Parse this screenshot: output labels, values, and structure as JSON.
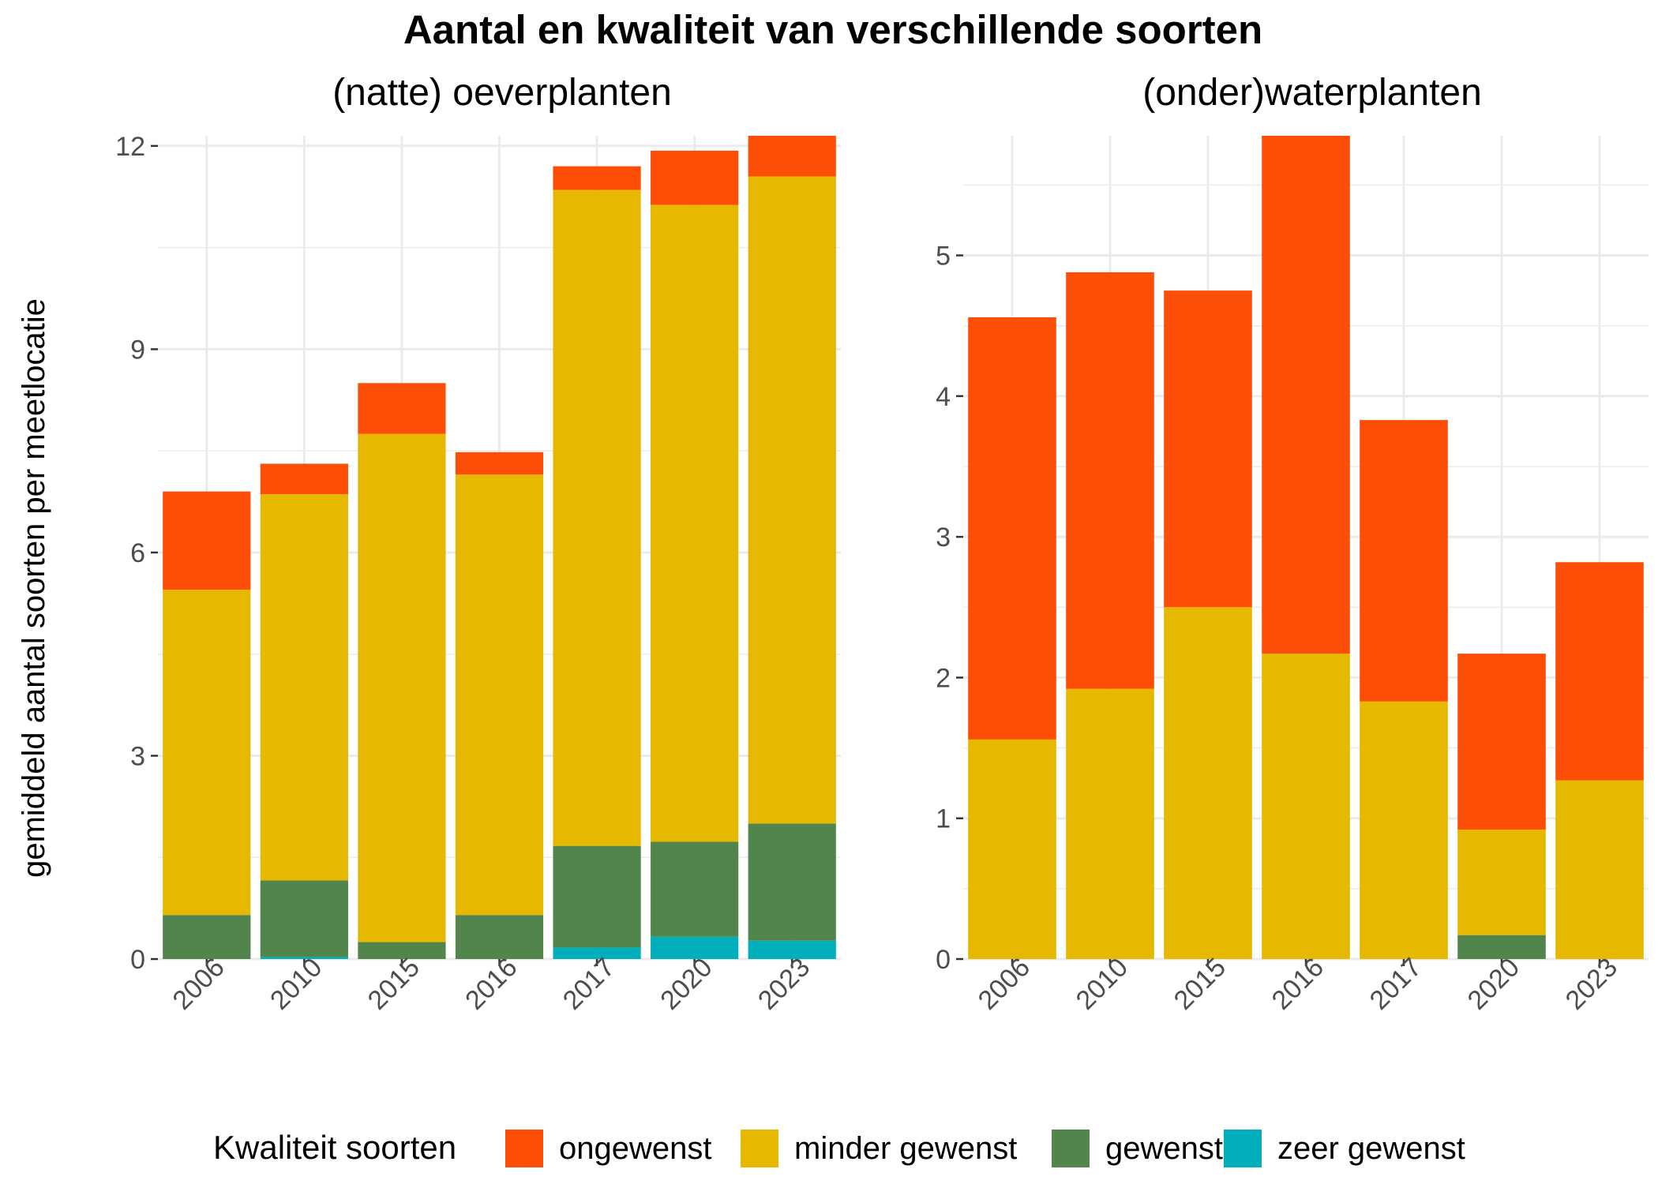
{
  "chart_data": {
    "type": "bar",
    "stacked": true,
    "title": "Aantal en kwaliteit van verschillende soorten",
    "ylabel": "gemiddeld aantal soorten per meetlocatie",
    "grid": true,
    "legend": {
      "title": "Kwaliteit soorten",
      "placement": "bottom",
      "entries": [
        {
          "label": "ongewenst",
          "color": "#FC4E07"
        },
        {
          "label": "minder gewenst",
          "color": "#E7B800"
        },
        {
          "label": "gewenst",
          "color": "#52854C"
        },
        {
          "label": "zeer gewenst",
          "color": "#00AFBB"
        }
      ]
    },
    "panels": [
      {
        "subtitle": "(natte) oeverplanten",
        "categories": [
          "2006",
          "2010",
          "2015",
          "2016",
          "2017",
          "2020",
          "2023"
        ],
        "ylim": [
          0,
          12.15
        ],
        "yticks": [
          0,
          3,
          6,
          9,
          12
        ],
        "yticklabels": [
          "0",
          "3",
          "6",
          "9",
          "12"
        ],
        "series": [
          {
            "name": "zeer gewenst",
            "values": [
              0.0,
              0.03,
              0.0,
              0.0,
              0.17,
              0.33,
              0.27
            ]
          },
          {
            "name": "gewenst",
            "values": [
              0.65,
              1.13,
              0.25,
              0.65,
              1.5,
              1.4,
              1.73
            ]
          },
          {
            "name": "minder gewenst",
            "values": [
              4.8,
              5.7,
              7.5,
              6.5,
              9.68,
              9.4,
              9.55
            ]
          },
          {
            "name": "ongewenst",
            "values": [
              1.45,
              0.45,
              0.75,
              0.33,
              0.35,
              0.8,
              0.6
            ]
          }
        ]
      },
      {
        "subtitle": "(onder)waterplanten",
        "categories": [
          "2006",
          "2010",
          "2015",
          "2016",
          "2017",
          "2020",
          "2023"
        ],
        "ylim": [
          0,
          5.85
        ],
        "yticks": [
          0,
          1,
          2,
          3,
          4,
          5
        ],
        "yticklabels": [
          "0",
          "1",
          "2",
          "3",
          "4",
          "5"
        ],
        "series": [
          {
            "name": "zeer gewenst",
            "values": [
              0,
              0,
              0,
              0,
              0,
              0,
              0
            ]
          },
          {
            "name": "gewenst",
            "values": [
              0,
              0,
              0,
              0,
              0,
              0.17,
              0
            ]
          },
          {
            "name": "minder gewenst",
            "values": [
              1.56,
              1.92,
              2.5,
              2.17,
              1.83,
              0.75,
              1.27
            ]
          },
          {
            "name": "ongewenst",
            "values": [
              3.0,
              2.96,
              2.25,
              3.68,
              2.0,
              1.25,
              1.55
            ]
          }
        ]
      }
    ]
  }
}
